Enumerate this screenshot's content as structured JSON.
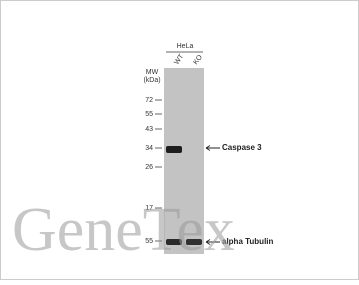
{
  "header": {
    "sample": "HeLa",
    "lanes": [
      "WT",
      "KO"
    ],
    "mw_label": [
      "MW",
      "(kDa)"
    ]
  },
  "markers": [
    "72",
    "55",
    "43",
    "34",
    "26",
    "17",
    "55"
  ],
  "bands": [
    "Caspase 3",
    "alpha Tubulin"
  ],
  "watermark": "GeneTex"
}
